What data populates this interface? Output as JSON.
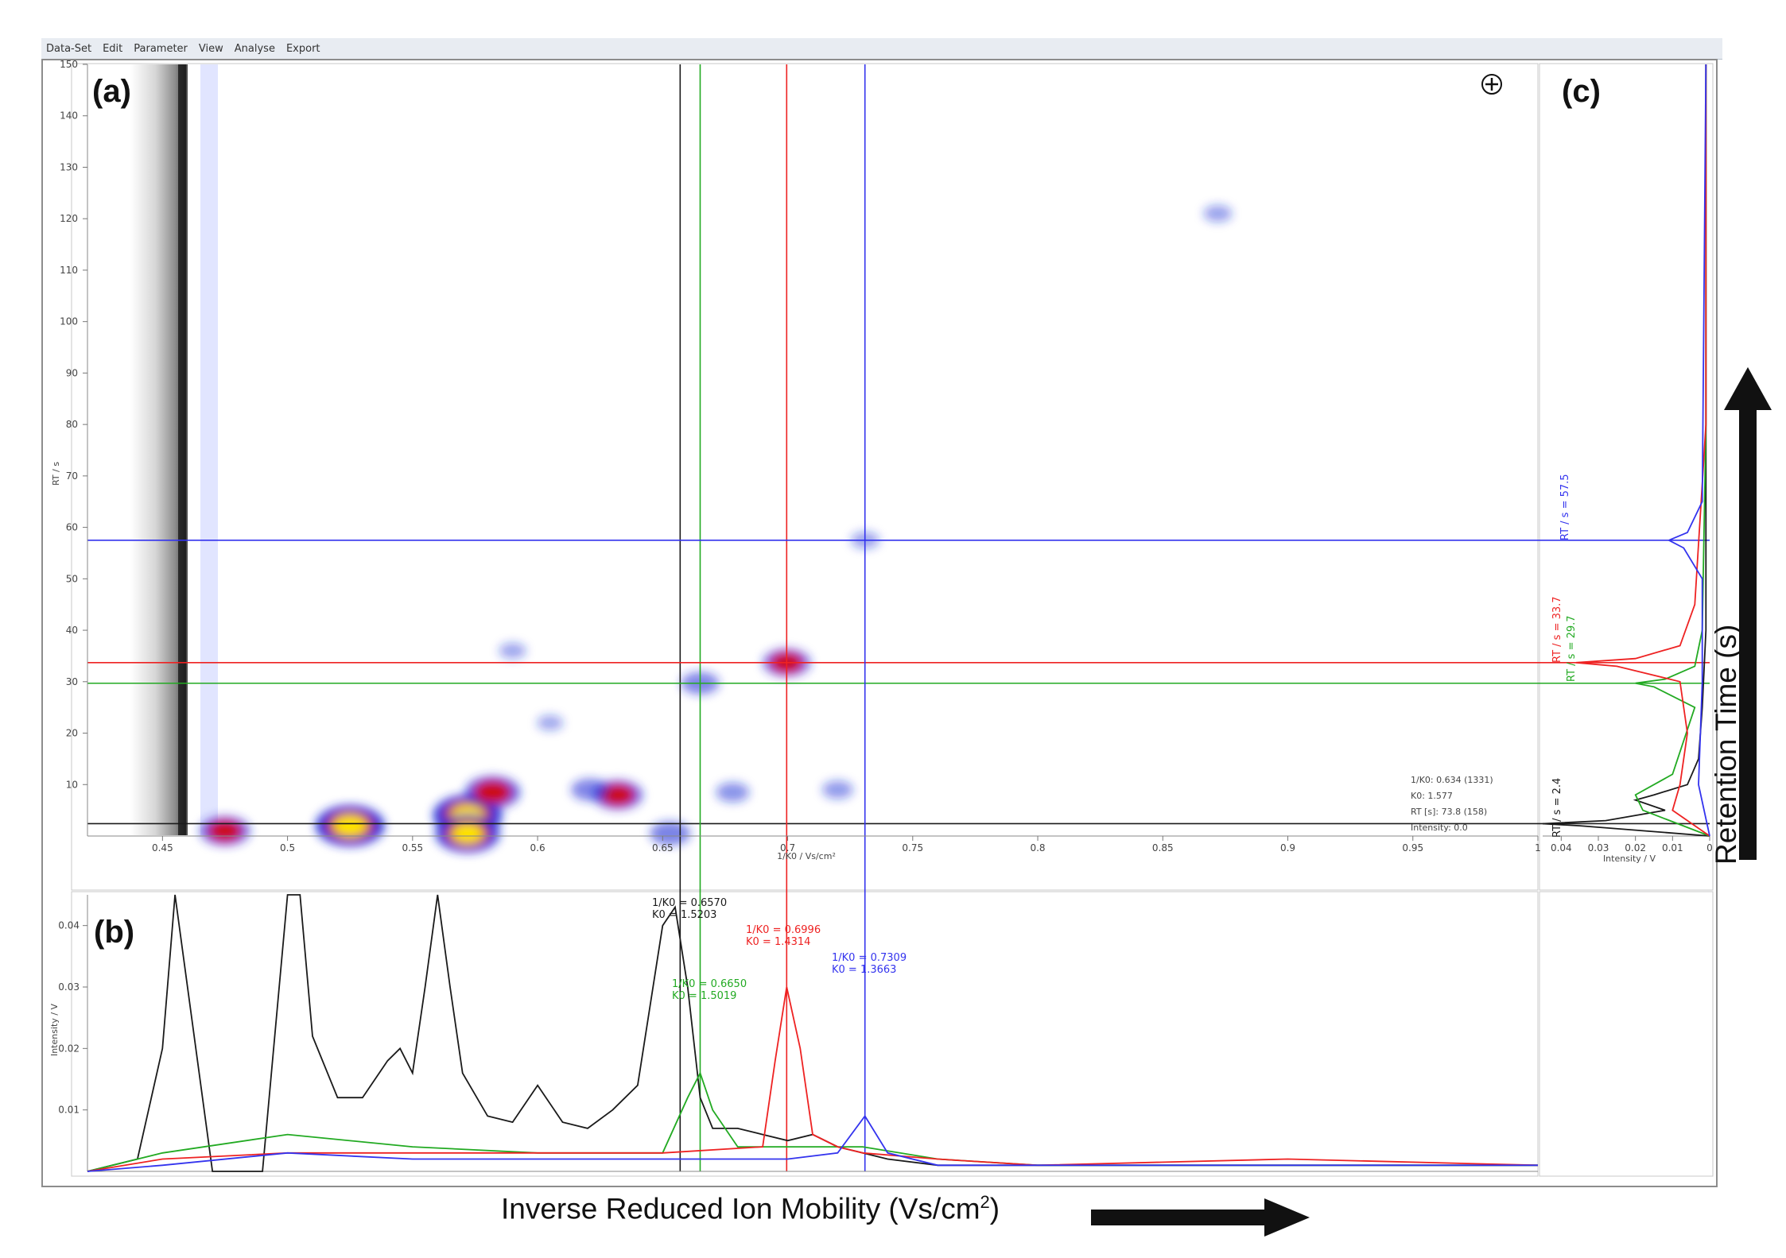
{
  "menu": [
    "Data-Set",
    "Edit",
    "Parameter",
    "View",
    "Analyse",
    "Export"
  ],
  "panel_labels": {
    "a": "(a)",
    "b": "(b)",
    "c": "(c)"
  },
  "main_x_label_text": "Inverse Reduced Ion Mobility (Vs/cm",
  "main_x_label_sup": "2",
  "main_x_label_close": ")",
  "main_y_label": "Retention Time (s)",
  "heatmap_axis": {
    "xlabel": "1/K0 / Vs/cm²",
    "ylabel": "RT / s",
    "xticks": [
      "0.45",
      "0.5",
      "0.55",
      "0.6",
      "0.65",
      "0.7",
      "0.75",
      "0.8",
      "0.85",
      "0.9",
      "0.95",
      "1"
    ],
    "yticks": [
      "10",
      "20",
      "30",
      "40",
      "50",
      "60",
      "70",
      "80",
      "90",
      "100",
      "110",
      "120",
      "130",
      "140",
      "150"
    ]
  },
  "cursor_readout": [
    "1/K0: 0.634   (1331)",
    "K0: 1.577",
    "RT [s]: 73.8   (158)",
    "Intensity: 0.0"
  ],
  "peak_annotations": {
    "black": [
      "1/K0 = 0.6570",
      "K0 = 1.5203"
    ],
    "green": [
      "1/K0 = 0.6650",
      "K0 = 1.5019"
    ],
    "red": [
      "1/K0 = 0.6996",
      "K0 = 1.4314"
    ],
    "blue": [
      "1/K0 = 0.7309",
      "K0 = 1.3663"
    ]
  },
  "rt_annotations": {
    "blue": "RT / s = 57.5",
    "red": "RT / s = 33.7",
    "green": "RT / s = 29.7",
    "black": "RT / s = 2.4"
  },
  "panel_b_axis": {
    "ylabel": "Intensity / V",
    "yticks": [
      "0.01",
      "0.02",
      "0.03",
      "0.04"
    ]
  },
  "panel_c_axis": {
    "xlabel": "Intensity / V",
    "xticks": [
      "0.04",
      "0.03",
      "0.02",
      "0.01",
      "0"
    ]
  },
  "colors": {
    "black": "#1a1a1a",
    "green": "#22aa22",
    "red": "#ee2222",
    "blue": "#3333ee",
    "heat_low": "#e8ebff",
    "heat_mid": "#1a2bd6",
    "heat_high": "#ffe600"
  },
  "chart_data": [
    {
      "type": "heatmap",
      "title": "",
      "xlabel": "1/K0 / Vs/cm²",
      "ylabel": "RT / s",
      "xlim": [
        0.42,
        1.0
      ],
      "ylim": [
        0,
        150
      ],
      "spots": [
        {
          "x": 0.475,
          "y": 1.0,
          "intensity": 0.6
        },
        {
          "x": 0.525,
          "y": 2.0,
          "intensity": 1.0
        },
        {
          "x": 0.572,
          "y": 4.0,
          "intensity": 1.0
        },
        {
          "x": 0.572,
          "y": 0.5,
          "intensity": 0.9
        },
        {
          "x": 0.582,
          "y": 8.5,
          "intensity": 0.7
        },
        {
          "x": 0.632,
          "y": 8.0,
          "intensity": 0.6
        },
        {
          "x": 0.621,
          "y": 9.0,
          "intensity": 0.35
        },
        {
          "x": 0.653,
          "y": 0.5,
          "intensity": 0.4
        },
        {
          "x": 0.665,
          "y": 29.7,
          "intensity": 0.35
        },
        {
          "x": 0.6996,
          "y": 33.7,
          "intensity": 0.55
        },
        {
          "x": 0.731,
          "y": 57.5,
          "intensity": 0.15
        },
        {
          "x": 0.59,
          "y": 36.0,
          "intensity": 0.12
        },
        {
          "x": 0.605,
          "y": 22.0,
          "intensity": 0.1
        },
        {
          "x": 0.872,
          "y": 121.0,
          "intensity": 0.15
        },
        {
          "x": 0.678,
          "y": 8.5,
          "intensity": 0.25
        },
        {
          "x": 0.72,
          "y": 9.0,
          "intensity": 0.2
        }
      ],
      "crosshairs": [
        {
          "color": "black",
          "x": 0.657,
          "y": 2.4
        },
        {
          "color": "green",
          "x": 0.665,
          "y": 29.7
        },
        {
          "color": "red",
          "x": 0.6996,
          "y": 33.7
        },
        {
          "color": "blue",
          "x": 0.7309,
          "y": 57.5
        }
      ]
    },
    {
      "type": "line",
      "title": "",
      "xlabel": "",
      "ylabel": "Intensity / V",
      "xlim": [
        0.42,
        1.0
      ],
      "ylim": [
        0,
        0.045
      ],
      "series": [
        {
          "color": "black",
          "x": [
            0.42,
            0.44,
            0.45,
            0.455,
            0.46,
            0.47,
            0.49,
            0.5,
            0.505,
            0.51,
            0.52,
            0.53,
            0.54,
            0.545,
            0.55,
            0.555,
            0.56,
            0.565,
            0.57,
            0.58,
            0.59,
            0.6,
            0.61,
            0.62,
            0.63,
            0.64,
            0.65,
            0.655,
            0.66,
            0.665,
            0.67,
            0.68,
            0.69,
            0.7,
            0.71,
            0.72,
            0.73,
            0.74,
            0.76,
            0.8,
            0.85,
            0.9,
            0.95,
            1.0
          ],
          "y": [
            0.0,
            0.002,
            0.02,
            0.045,
            0.03,
            0.0,
            0.0,
            0.045,
            0.045,
            0.022,
            0.012,
            0.012,
            0.018,
            0.02,
            0.016,
            0.03,
            0.045,
            0.03,
            0.016,
            0.009,
            0.008,
            0.014,
            0.008,
            0.007,
            0.01,
            0.014,
            0.04,
            0.043,
            0.03,
            0.012,
            0.007,
            0.007,
            0.006,
            0.005,
            0.006,
            0.004,
            0.003,
            0.002,
            0.001,
            0.001,
            0.001,
            0.001,
            0.001,
            0.001
          ]
        },
        {
          "color": "green",
          "x": [
            0.42,
            0.45,
            0.5,
            0.55,
            0.6,
            0.65,
            0.66,
            0.665,
            0.67,
            0.68,
            0.7,
            0.73,
            0.76,
            0.8,
            0.9,
            1.0
          ],
          "y": [
            0.0,
            0.003,
            0.006,
            0.004,
            0.003,
            0.003,
            0.012,
            0.016,
            0.01,
            0.004,
            0.004,
            0.004,
            0.002,
            0.001,
            0.001,
            0.001
          ]
        },
        {
          "color": "red",
          "x": [
            0.42,
            0.45,
            0.5,
            0.55,
            0.6,
            0.65,
            0.69,
            0.695,
            0.6996,
            0.705,
            0.71,
            0.72,
            0.73,
            0.76,
            0.8,
            0.9,
            1.0
          ],
          "y": [
            0.0,
            0.002,
            0.003,
            0.003,
            0.003,
            0.003,
            0.004,
            0.018,
            0.03,
            0.02,
            0.006,
            0.004,
            0.003,
            0.002,
            0.001,
            0.002,
            0.001
          ]
        },
        {
          "color": "blue",
          "x": [
            0.42,
            0.45,
            0.5,
            0.55,
            0.6,
            0.65,
            0.7,
            0.72,
            0.7309,
            0.74,
            0.76,
            0.8,
            0.9,
            1.0
          ],
          "y": [
            0.0,
            0.001,
            0.003,
            0.002,
            0.002,
            0.002,
            0.002,
            0.003,
            0.009,
            0.003,
            0.001,
            0.001,
            0.001,
            0.001
          ]
        }
      ]
    },
    {
      "type": "line",
      "title": "",
      "xlabel": "Intensity / V",
      "ylabel": "RT / s",
      "xlim": [
        0.045,
        0
      ],
      "ylim": [
        0,
        150
      ],
      "series": [
        {
          "color": "black",
          "rt": [
            0,
            2,
            2.4,
            3,
            5,
            7,
            8,
            10,
            15,
            25,
            40,
            80,
            150
          ],
          "intensity": [
            0.0,
            0.035,
            0.045,
            0.028,
            0.012,
            0.02,
            0.015,
            0.006,
            0.003,
            0.002,
            0.001,
            0.001,
            0.001
          ]
        },
        {
          "color": "green",
          "rt": [
            0,
            5,
            8,
            12,
            25,
            29,
            29.7,
            30.5,
            33,
            40,
            80,
            150
          ],
          "intensity": [
            0.0,
            0.018,
            0.02,
            0.01,
            0.004,
            0.015,
            0.02,
            0.012,
            0.004,
            0.002,
            0.001,
            0.001
          ]
        },
        {
          "color": "red",
          "rt": [
            0,
            5,
            10,
            20,
            30,
            33,
            33.7,
            34.5,
            37,
            45,
            80,
            150
          ],
          "intensity": [
            0.0,
            0.01,
            0.008,
            0.006,
            0.008,
            0.025,
            0.036,
            0.02,
            0.008,
            0.004,
            0.001,
            0.001
          ]
        },
        {
          "color": "blue",
          "rt": [
            0,
            10,
            30,
            50,
            56,
            57.5,
            59,
            65,
            150
          ],
          "intensity": [
            0.0,
            0.003,
            0.002,
            0.002,
            0.007,
            0.011,
            0.006,
            0.002,
            0.001
          ]
        }
      ]
    }
  ]
}
